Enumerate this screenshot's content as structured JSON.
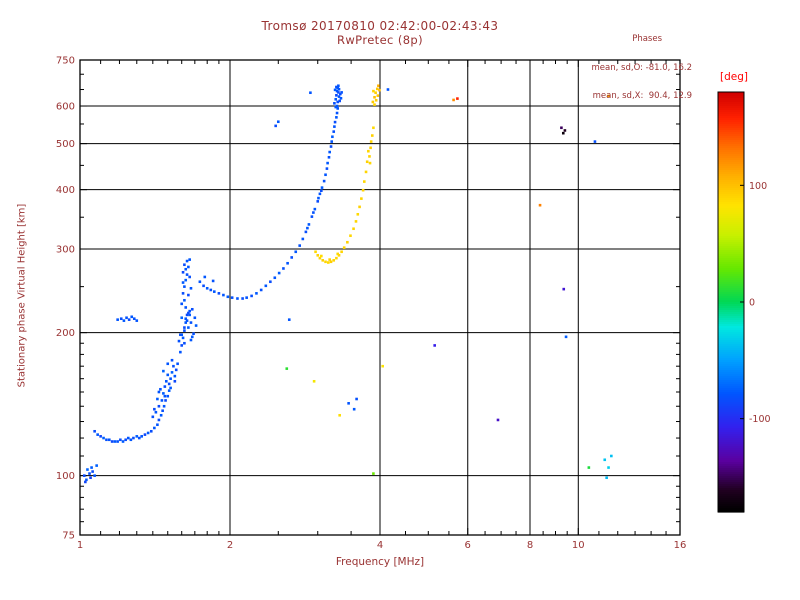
{
  "colors": {
    "text": "#993333",
    "axis": "#000000",
    "unit_label": "#ff0000",
    "background": "#ffffff"
  },
  "chart_data": {
    "type": "scatter",
    "title": "Tromsø 20170810 02:42:00-02:43:43",
    "subtitle": "RwPretec (8p)",
    "annotations": {
      "header": "Phases",
      "line_o": "mean, sd,O: -81.0, 16.2",
      "line_x": "mean, sd,X:  90.4, 12.9"
    },
    "xlabel": "Frequency [MHz]",
    "ylabel": "Stationary phase Virtual Height [km]",
    "x_scale": "log",
    "y_scale": "log",
    "xlim": [
      1,
      16
    ],
    "ylim": [
      75,
      750
    ],
    "x_ticks": [
      1,
      2,
      4,
      6,
      8,
      10,
      16
    ],
    "y_ticks": [
      75,
      100,
      200,
      300,
      400,
      500,
      600,
      750
    ],
    "x_gridlines": [
      2,
      4,
      6,
      8,
      10
    ],
    "y_gridlines": [
      100,
      200,
      300,
      400,
      500,
      600
    ],
    "x_minor_ticks": [
      1.1,
      1.2,
      1.3,
      1.4,
      1.5,
      1.6,
      1.7,
      1.8,
      1.9,
      2.5,
      3,
      3.5,
      4.5,
      5,
      5.5,
      6.5,
      7,
      7.5,
      8.5,
      9,
      9.5,
      11,
      12,
      13,
      14,
      15
    ],
    "y_minor_ticks": [
      80,
      85,
      90,
      95,
      110,
      120,
      130,
      140,
      150,
      160,
      170,
      180,
      190,
      250,
      350,
      450,
      550,
      650,
      700
    ],
    "grid": true,
    "colorbar": {
      "label": "[deg]",
      "range": [
        -180,
        180
      ],
      "ticks": [
        100,
        0,
        -100
      ],
      "stops": [
        [
          0.0,
          "#000000"
        ],
        [
          0.05,
          "#200020"
        ],
        [
          0.12,
          "#5a00a0"
        ],
        [
          0.2,
          "#3320ee"
        ],
        [
          0.28,
          "#0055ff"
        ],
        [
          0.36,
          "#00a0ff"
        ],
        [
          0.44,
          "#00e8e0"
        ],
        [
          0.5,
          "#00d855"
        ],
        [
          0.58,
          "#66e800"
        ],
        [
          0.66,
          "#c8f000"
        ],
        [
          0.73,
          "#ffe400"
        ],
        [
          0.8,
          "#ffb000"
        ],
        [
          0.87,
          "#ff7000"
        ],
        [
          0.94,
          "#ff2000"
        ],
        [
          1.0,
          "#d00000"
        ]
      ]
    },
    "points_format": [
      "frequency_mhz",
      "virtual_height_km",
      "phase_deg"
    ],
    "points": [
      [
        1.02,
        100,
        -85
      ],
      [
        1.03,
        98,
        -78
      ],
      [
        1.035,
        103,
        -74
      ],
      [
        1.045,
        101,
        -82
      ],
      [
        1.05,
        99,
        -90
      ],
      [
        1.055,
        104,
        -77
      ],
      [
        1.06,
        102,
        -84
      ],
      [
        1.07,
        100,
        -80
      ],
      [
        1.08,
        105,
        -75
      ],
      [
        1.025,
        97,
        -88
      ],
      [
        1.07,
        124,
        -84
      ],
      [
        1.085,
        122,
        -79
      ],
      [
        1.1,
        121,
        -88
      ],
      [
        1.115,
        120,
        -75
      ],
      [
        1.13,
        119,
        -82
      ],
      [
        1.145,
        119,
        -80
      ],
      [
        1.16,
        118,
        -86
      ],
      [
        1.175,
        118,
        -78
      ],
      [
        1.19,
        118,
        -81
      ],
      [
        1.205,
        119,
        -83
      ],
      [
        1.22,
        118,
        -77
      ],
      [
        1.235,
        119,
        -85
      ],
      [
        1.25,
        120,
        -80
      ],
      [
        1.265,
        119,
        -79
      ],
      [
        1.28,
        120,
        -84
      ],
      [
        1.3,
        121,
        -76
      ],
      [
        1.315,
        120,
        -82
      ],
      [
        1.33,
        121,
        -80
      ],
      [
        1.35,
        122,
        -87
      ],
      [
        1.37,
        123,
        -78
      ],
      [
        1.39,
        124,
        -83
      ],
      [
        1.41,
        126,
        -80
      ],
      [
        1.43,
        128,
        -80
      ],
      [
        1.44,
        131,
        -84
      ],
      [
        1.455,
        134,
        -78
      ],
      [
        1.465,
        137,
        -82
      ],
      [
        1.475,
        140,
        -79
      ],
      [
        1.485,
        144,
        -85
      ],
      [
        1.5,
        147,
        -80
      ],
      [
        1.51,
        151,
        -77
      ],
      [
        1.4,
        133,
        -82
      ],
      [
        1.42,
        136,
        -79
      ],
      [
        1.44,
        140,
        -85
      ],
      [
        1.46,
        144,
        -80
      ],
      [
        1.47,
        149,
        -76
      ],
      [
        1.48,
        154,
        -83
      ],
      [
        1.49,
        158,
        -80
      ],
      [
        1.5,
        163,
        -78
      ],
      [
        1.51,
        156,
        -84
      ],
      [
        1.52,
        160,
        -80
      ],
      [
        1.53,
        165,
        -75
      ],
      [
        1.54,
        170,
        -82
      ],
      [
        1.55,
        162,
        -79
      ],
      [
        1.56,
        167,
        -85
      ],
      [
        1.57,
        172,
        -80
      ],
      [
        1.45,
        152,
        -81
      ],
      [
        1.43,
        145,
        -77
      ],
      [
        1.41,
        138,
        -84
      ],
      [
        1.48,
        147,
        -80
      ],
      [
        1.52,
        153,
        -78
      ],
      [
        1.55,
        158,
        -86
      ],
      [
        1.5,
        172,
        -80
      ],
      [
        1.47,
        166,
        -74
      ],
      [
        1.53,
        175,
        -82
      ],
      [
        1.44,
        150,
        -80
      ],
      [
        1.59,
        182,
        -80
      ],
      [
        1.6,
        188,
        -84
      ],
      [
        1.61,
        195,
        -78
      ],
      [
        1.62,
        202,
        -82
      ],
      [
        1.63,
        210,
        -79
      ],
      [
        1.64,
        218,
        -85
      ],
      [
        1.63,
        226,
        -80
      ],
      [
        1.62,
        234,
        -77
      ],
      [
        1.61,
        242,
        -83
      ],
      [
        1.62,
        250,
        -80
      ],
      [
        1.63,
        258,
        -76
      ],
      [
        1.64,
        265,
        -82
      ],
      [
        1.63,
        272,
        -79
      ],
      [
        1.62,
        278,
        -84
      ],
      [
        1.64,
        283,
        -80
      ],
      [
        1.6,
        230,
        -81
      ],
      [
        1.61,
        255,
        -78
      ],
      [
        1.65,
        240,
        -85
      ],
      [
        1.66,
        222,
        -80
      ],
      [
        1.65,
        205,
        -77
      ],
      [
        1.66,
        262,
        -83
      ],
      [
        1.67,
        248,
        -80
      ],
      [
        1.6,
        215,
        -74
      ],
      [
        1.59,
        198,
        -82
      ],
      [
        1.65,
        275,
        -80
      ],
      [
        1.61,
        268,
        -86
      ],
      [
        1.66,
        285,
        -79
      ],
      [
        1.67,
        210,
        -81
      ],
      [
        1.68,
        196,
        -78
      ],
      [
        1.62,
        190,
        -83
      ],
      [
        1.58,
        192,
        -82
      ],
      [
        1.6,
        198,
        -79
      ],
      [
        1.62,
        205,
        -84
      ],
      [
        1.64,
        212,
        -80
      ],
      [
        1.66,
        218,
        -77
      ],
      [
        1.68,
        224,
        -83
      ],
      [
        1.7,
        215,
        -80
      ],
      [
        1.71,
        207,
        -76
      ],
      [
        1.69,
        199,
        -82
      ],
      [
        1.67,
        193,
        -79
      ],
      [
        1.65,
        220,
        -85
      ],
      [
        1.63,
        214,
        -80
      ],
      [
        1.19,
        213,
        -80
      ],
      [
        1.21,
        214,
        -83
      ],
      [
        1.225,
        212,
        -78
      ],
      [
        1.24,
        215,
        -81
      ],
      [
        1.255,
        213,
        -85
      ],
      [
        1.27,
        216,
        -79
      ],
      [
        1.285,
        214,
        -82
      ],
      [
        1.3,
        212,
        -80
      ],
      [
        1.74,
        256,
        -80
      ],
      [
        1.77,
        251,
        -83
      ],
      [
        1.8,
        248,
        -78
      ],
      [
        1.83,
        246,
        -82
      ],
      [
        1.86,
        244,
        -79
      ],
      [
        1.9,
        242,
        -84
      ],
      [
        1.94,
        240,
        -80
      ],
      [
        1.98,
        238,
        -77
      ],
      [
        2.02,
        237,
        -82
      ],
      [
        2.07,
        236,
        -80
      ],
      [
        2.12,
        236,
        -83
      ],
      [
        1.78,
        262,
        -79
      ],
      [
        1.85,
        257,
        -81
      ],
      [
        2.16,
        237,
        -80
      ],
      [
        2.21,
        239,
        -83
      ],
      [
        2.26,
        242,
        -78
      ],
      [
        2.31,
        246,
        -82
      ],
      [
        2.36,
        251,
        -79
      ],
      [
        2.41,
        256,
        -84
      ],
      [
        2.46,
        261,
        -80
      ],
      [
        2.51,
        267,
        -77
      ],
      [
        2.56,
        273,
        -82
      ],
      [
        2.61,
        280,
        -80
      ],
      [
        2.66,
        288,
        -83
      ],
      [
        2.71,
        296,
        -79
      ],
      [
        2.76,
        305,
        -81
      ],
      [
        2.8,
        315,
        -80
      ],
      [
        2.84,
        326,
        -83
      ],
      [
        2.88,
        338,
        -78
      ],
      [
        2.92,
        351,
        -82
      ],
      [
        2.96,
        364,
        -79
      ],
      [
        3.0,
        378,
        -84
      ],
      [
        3.03,
        392,
        -80
      ],
      [
        3.06,
        404,
        -77
      ],
      [
        3.09,
        417,
        -82
      ],
      [
        2.86,
        332,
        -80
      ],
      [
        2.94,
        358,
        -81
      ],
      [
        3.01,
        384,
        -79
      ],
      [
        3.05,
        398,
        -83
      ],
      [
        3.11,
        430,
        -80
      ],
      [
        3.13,
        443,
        -83
      ],
      [
        3.14,
        455,
        -78
      ],
      [
        3.16,
        468,
        -82
      ],
      [
        3.17,
        480,
        -79
      ],
      [
        3.19,
        493,
        -84
      ],
      [
        3.2,
        505,
        -80
      ],
      [
        3.21,
        517,
        -77
      ],
      [
        3.23,
        530,
        -82
      ],
      [
        3.24,
        543,
        -80
      ],
      [
        3.25,
        555,
        -83
      ],
      [
        3.27,
        568,
        -79
      ],
      [
        3.28,
        580,
        -81
      ],
      [
        3.29,
        593,
        -80
      ],
      [
        3.24,
        608,
        -82
      ],
      [
        3.26,
        620,
        -78
      ],
      [
        3.27,
        632,
        -85
      ],
      [
        3.28,
        645,
        -80
      ],
      [
        3.29,
        655,
        -76
      ],
      [
        3.3,
        641,
        -83
      ],
      [
        3.31,
        628,
        -79
      ],
      [
        3.32,
        615,
        -84
      ],
      [
        3.28,
        600,
        -80
      ],
      [
        3.25,
        649,
        -77
      ],
      [
        3.27,
        658,
        -82
      ],
      [
        3.3,
        662,
        -80
      ],
      [
        3.33,
        636,
        -85
      ],
      [
        3.34,
        623,
        -79
      ],
      [
        3.29,
        612,
        -83
      ],
      [
        3.31,
        651,
        -80
      ],
      [
        3.26,
        597,
        -78
      ],
      [
        3.35,
        641,
        -81
      ],
      [
        2.97,
        296,
        88
      ],
      [
        3.0,
        291,
        91
      ],
      [
        3.03,
        287,
        89
      ],
      [
        3.07,
        284,
        92
      ],
      [
        3.11,
        282,
        90
      ],
      [
        3.15,
        281,
        88
      ],
      [
        3.19,
        282,
        93
      ],
      [
        3.23,
        284,
        90
      ],
      [
        3.27,
        287,
        89
      ],
      [
        3.31,
        291,
        91
      ],
      [
        3.35,
        296,
        90
      ],
      [
        3.05,
        290,
        87
      ],
      [
        3.17,
        285,
        92
      ],
      [
        3.29,
        293,
        88
      ],
      [
        3.39,
        302,
        90
      ],
      [
        3.44,
        310,
        92
      ],
      [
        3.49,
        320,
        89
      ],
      [
        3.54,
        331,
        91
      ],
      [
        3.58,
        343,
        90
      ],
      [
        3.61,
        355,
        88
      ],
      [
        3.64,
        368,
        92
      ],
      [
        3.67,
        383,
        90
      ],
      [
        3.7,
        399,
        91
      ],
      [
        3.72,
        416,
        89
      ],
      [
        3.75,
        436,
        90
      ],
      [
        3.77,
        458,
        92
      ],
      [
        3.79,
        482,
        90
      ],
      [
        3.81,
        470,
        91
      ],
      [
        3.82,
        455,
        89
      ],
      [
        3.83,
        490,
        93
      ],
      [
        3.84,
        505,
        90
      ],
      [
        3.86,
        520,
        92
      ],
      [
        3.88,
        540,
        88
      ],
      [
        3.87,
        612,
        95
      ],
      [
        3.9,
        626,
        100
      ],
      [
        3.92,
        640,
        92
      ],
      [
        3.95,
        652,
        96
      ],
      [
        3.97,
        662,
        108
      ],
      [
        3.9,
        604,
        90
      ],
      [
        3.93,
        617,
        94
      ],
      [
        3.96,
        631,
        98
      ],
      [
        3.88,
        645,
        90
      ],
      [
        3.99,
        648,
        102
      ],
      [
        2.47,
        545,
        -84
      ],
      [
        2.5,
        556,
        -79
      ],
      [
        2.9,
        640,
        -80
      ],
      [
        4.15,
        650,
        -80
      ],
      [
        5.62,
        618,
        122
      ],
      [
        5.72,
        622,
        158
      ],
      [
        5.15,
        188,
        -110
      ],
      [
        9.25,
        540,
        -150
      ],
      [
        9.4,
        533,
        -162
      ],
      [
        9.33,
        526,
        -174
      ],
      [
        10.8,
        505,
        -82
      ],
      [
        9.35,
        247,
        -118
      ],
      [
        9.45,
        196,
        -76
      ],
      [
        11.3,
        108,
        -36
      ],
      [
        11.5,
        104,
        -32
      ],
      [
        11.65,
        110,
        -38
      ],
      [
        11.4,
        99,
        -40
      ],
      [
        10.5,
        104,
        8
      ],
      [
        2.6,
        168,
        12
      ],
      [
        2.95,
        158,
        78
      ],
      [
        3.32,
        134,
        86
      ],
      [
        3.46,
        142,
        -80
      ],
      [
        4.05,
        170,
        82
      ],
      [
        6.9,
        131,
        -122
      ],
      [
        11.5,
        630,
        112
      ],
      [
        8.38,
        371,
        126
      ],
      [
        2.63,
        213,
        -80
      ],
      [
        3.55,
        138,
        -78
      ],
      [
        3.59,
        145,
        -82
      ],
      [
        3.88,
        101,
        30
      ]
    ]
  }
}
